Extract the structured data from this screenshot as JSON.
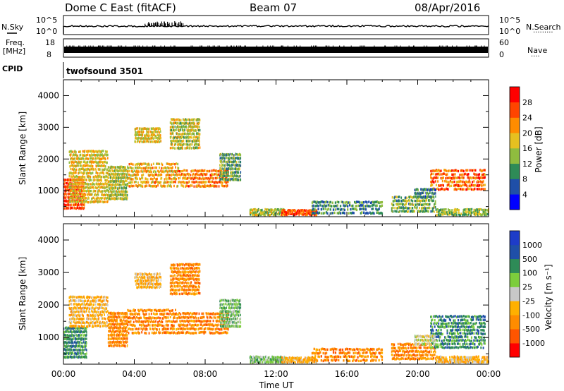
{
  "header": {
    "title": "Dome C East (fitACF)",
    "beam": "Beam 07",
    "date": "08/Apr/2016"
  },
  "nsky": {
    "label": "N.Sky",
    "tick_labels": [
      "10^5",
      "10^0"
    ],
    "right_tick_labels": [
      "10^5",
      "10^0"
    ],
    "right_label": "N.Search",
    "right_marker": "·········"
  },
  "freq": {
    "label_line1": "Freq.",
    "label_line2": "[MHz]",
    "left_ticks": [
      "18",
      "8"
    ],
    "right_ticks": [
      "60",
      "0"
    ],
    "right_label": "Nave",
    "right_marker": "····"
  },
  "cpid": {
    "label": "CPID",
    "program": "twofsound 3501"
  },
  "time_axis": {
    "ticks": [
      "00:00",
      "04:00",
      "08:00",
      "12:00",
      "16:00",
      "20:00",
      "00:00"
    ],
    "label": "Time UT"
  },
  "colors": {
    "power": [
      "#0000ff",
      "#1f4fa8",
      "#2e8b57",
      "#8fbc3f",
      "#e6c020",
      "#ff8c00",
      "#ff4500",
      "#ff0000"
    ],
    "velocity": [
      "#ff0000",
      "#ff5500",
      "#ff8c00",
      "#ffb000",
      "#c8c8c8",
      "#7ccd3c",
      "#2e8b57",
      "#1f4fa8",
      "#1e3cc8"
    ]
  },
  "chart_data": [
    {
      "type": "heatmap",
      "panel": "power",
      "x_range_hours": [
        0,
        24
      ],
      "ylim": [
        180,
        4500
      ],
      "ylabel": "Slant Range [km]",
      "y_ticks": [
        1000,
        2000,
        3000,
        4000
      ],
      "colorbar": {
        "label": "Power [dB]",
        "ticks": [
          "4",
          "8",
          "12",
          "16",
          "20",
          "24",
          "28"
        ],
        "range": [
          0,
          32
        ]
      },
      "regions": [
        {
          "t": [
            0.0,
            1.2
          ],
          "r": [
            400,
            1400
          ],
          "level": 27
        },
        {
          "t": [
            0.3,
            2.5
          ],
          "r": [
            600,
            2300
          ],
          "level": 18
        },
        {
          "t": [
            2.5,
            3.6
          ],
          "r": [
            700,
            1800
          ],
          "level": 15
        },
        {
          "t": [
            3.6,
            6.5
          ],
          "r": [
            1100,
            1900
          ],
          "level": 20
        },
        {
          "t": [
            6.5,
            9.3
          ],
          "r": [
            1100,
            1700
          ],
          "level": 23
        },
        {
          "t": [
            6.0,
            7.7
          ],
          "r": [
            2300,
            3300
          ],
          "level": 16
        },
        {
          "t": [
            4.0,
            5.5
          ],
          "r": [
            2500,
            3000
          ],
          "level": 18
        },
        {
          "t": [
            8.8,
            10.0
          ],
          "r": [
            1300,
            2200
          ],
          "level": 12
        },
        {
          "t": [
            10.5,
            12.5
          ],
          "r": [
            200,
            420
          ],
          "level": 16
        },
        {
          "t": [
            12.3,
            14.3
          ],
          "r": [
            200,
            380
          ],
          "level": 26
        },
        {
          "t": [
            14.0,
            18.0
          ],
          "r": [
            250,
            700
          ],
          "level": 10
        },
        {
          "t": [
            18.5,
            21.0
          ],
          "r": [
            300,
            850
          ],
          "level": 13
        },
        {
          "t": [
            20.7,
            23.8
          ],
          "r": [
            1000,
            1700
          ],
          "level": 24
        },
        {
          "t": [
            19.8,
            21.0
          ],
          "r": [
            750,
            1100
          ],
          "level": 9
        },
        {
          "t": [
            21.0,
            24.0
          ],
          "r": [
            200,
            420
          ],
          "level": 14
        }
      ]
    },
    {
      "type": "heatmap",
      "panel": "velocity",
      "x_range_hours": [
        0,
        24
      ],
      "ylim": [
        180,
        4500
      ],
      "ylabel": "Slant Range [km]",
      "y_ticks": [
        1000,
        2000,
        3000,
        4000
      ],
      "colorbar": {
        "label": "Velocity [m s⁻¹]",
        "ticks": [
          "-1000",
          "-500",
          "-100",
          "-25",
          "25",
          "100",
          "500",
          "1000"
        ]
      },
      "regions": [
        {
          "t": [
            0.0,
            1.3
          ],
          "r": [
            350,
            1350
          ],
          "level": 6
        },
        {
          "t": [
            0.3,
            2.5
          ],
          "r": [
            1300,
            2300
          ],
          "level": 3
        },
        {
          "t": [
            2.5,
            3.6
          ],
          "r": [
            700,
            1800
          ],
          "level": 2
        },
        {
          "t": [
            3.6,
            6.5
          ],
          "r": [
            1100,
            1900
          ],
          "level": 2
        },
        {
          "t": [
            6.5,
            9.3
          ],
          "r": [
            1100,
            1800
          ],
          "level": 2
        },
        {
          "t": [
            6.0,
            7.7
          ],
          "r": [
            2300,
            3300
          ],
          "level": 2
        },
        {
          "t": [
            4.0,
            5.5
          ],
          "r": [
            2500,
            3000
          ],
          "level": 3
        },
        {
          "t": [
            8.8,
            10.0
          ],
          "r": [
            1300,
            2200
          ],
          "level": 5
        },
        {
          "t": [
            10.5,
            12.5
          ],
          "r": [
            200,
            420
          ],
          "level": 5
        },
        {
          "t": [
            12.3,
            14.3
          ],
          "r": [
            200,
            380
          ],
          "level": 3
        },
        {
          "t": [
            14.0,
            18.0
          ],
          "r": [
            250,
            700
          ],
          "level": 2
        },
        {
          "t": [
            18.5,
            21.0
          ],
          "r": [
            300,
            850
          ],
          "level": 2
        },
        {
          "t": [
            20.7,
            23.8
          ],
          "r": [
            650,
            1700
          ],
          "level": 6
        },
        {
          "t": [
            19.8,
            21.0
          ],
          "r": [
            750,
            1100
          ],
          "level": 4
        },
        {
          "t": [
            21.0,
            24.0
          ],
          "r": [
            200,
            420
          ],
          "level": 3
        }
      ]
    }
  ]
}
